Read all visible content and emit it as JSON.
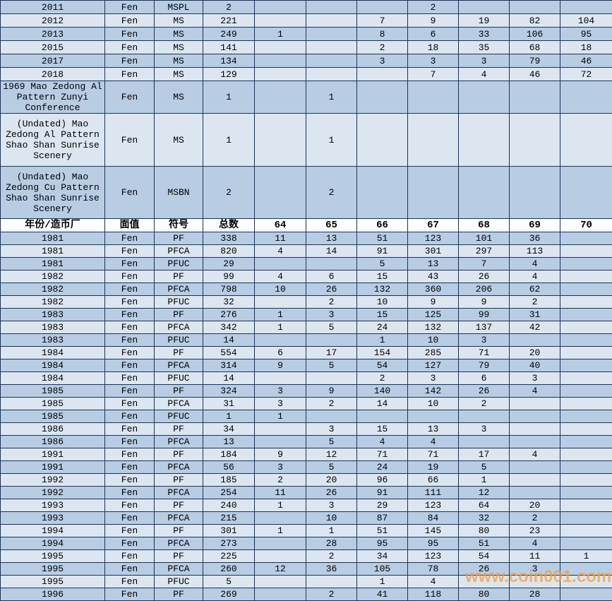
{
  "table": {
    "header": [
      "年份/造币厂",
      "面值",
      "符号",
      "总数",
      "64",
      "65",
      "66",
      "67",
      "68",
      "69",
      "70"
    ],
    "rows_top": [
      [
        "2011",
        "Fen",
        "MSPL",
        "2",
        "",
        "",
        "",
        "2",
        "",
        "",
        ""
      ],
      [
        "2012",
        "Fen",
        "MS",
        "221",
        "",
        "",
        "7",
        "9",
        "19",
        "82",
        "104"
      ],
      [
        "2013",
        "Fen",
        "MS",
        "249",
        "1",
        "",
        "8",
        "6",
        "33",
        "106",
        "95"
      ],
      [
        "2015",
        "Fen",
        "MS",
        "141",
        "",
        "",
        "2",
        "18",
        "35",
        "68",
        "18"
      ],
      [
        "2017",
        "Fen",
        "MS",
        "134",
        "",
        "",
        "3",
        "3",
        "3",
        "79",
        "46"
      ],
      [
        "2018",
        "Fen",
        "MS",
        "129",
        "",
        "",
        "",
        "7",
        "4",
        "46",
        "72"
      ],
      [
        "1969 Mao Zedong Al Pattern Zunyi Conference",
        "Fen",
        "MS",
        "1",
        "",
        "1",
        "",
        "",
        "",
        "",
        ""
      ],
      [
        "(Undated) Mao Zedong Al Pattern Shao Shan Sunrise Scenery",
        "Fen",
        "MS",
        "1",
        "",
        "1",
        "",
        "",
        "",
        "",
        ""
      ],
      [
        "(Undated) Mao Zedong Cu Pattern Shao Shan Sunrise Scenery",
        "Fen",
        "MSBN",
        "2",
        "",
        "2",
        "",
        "",
        "",
        "",
        ""
      ]
    ],
    "rows_main": [
      [
        "1981",
        "Fen",
        "PF",
        "338",
        "11",
        "13",
        "51",
        "123",
        "101",
        "36",
        ""
      ],
      [
        "1981",
        "Fen",
        "PFCA",
        "820",
        "4",
        "14",
        "91",
        "301",
        "297",
        "113",
        ""
      ],
      [
        "1981",
        "Fen",
        "PFUC",
        "29",
        "",
        "",
        "5",
        "13",
        "7",
        "4",
        ""
      ],
      [
        "1982",
        "Fen",
        "PF",
        "99",
        "4",
        "6",
        "15",
        "43",
        "26",
        "4",
        ""
      ],
      [
        "1982",
        "Fen",
        "PFCA",
        "798",
        "10",
        "26",
        "132",
        "360",
        "206",
        "62",
        ""
      ],
      [
        "1982",
        "Fen",
        "PFUC",
        "32",
        "",
        "2",
        "10",
        "9",
        "9",
        "2",
        ""
      ],
      [
        "1983",
        "Fen",
        "PF",
        "276",
        "1",
        "3",
        "15",
        "125",
        "99",
        "31",
        ""
      ],
      [
        "1983",
        "Fen",
        "PFCA",
        "342",
        "1",
        "5",
        "24",
        "132",
        "137",
        "42",
        ""
      ],
      [
        "1983",
        "Fen",
        "PFUC",
        "14",
        "",
        "",
        "1",
        "10",
        "3",
        "",
        ""
      ],
      [
        "1984",
        "Fen",
        "PF",
        "554",
        "6",
        "17",
        "154",
        "285",
        "71",
        "20",
        ""
      ],
      [
        "1984",
        "Fen",
        "PFCA",
        "314",
        "9",
        "5",
        "54",
        "127",
        "79",
        "40",
        ""
      ],
      [
        "1984",
        "Fen",
        "PFUC",
        "14",
        "",
        "",
        "2",
        "3",
        "6",
        "3",
        ""
      ],
      [
        "1985",
        "Fen",
        "PF",
        "324",
        "3",
        "9",
        "140",
        "142",
        "26",
        "4",
        ""
      ],
      [
        "1985",
        "Fen",
        "PFCA",
        "31",
        "3",
        "2",
        "14",
        "10",
        "2",
        "",
        ""
      ],
      [
        "1985",
        "Fen",
        "PFUC",
        "1",
        "1",
        "",
        "",
        "",
        "",
        "",
        ""
      ],
      [
        "1986",
        "Fen",
        "PF",
        "34",
        "",
        "3",
        "15",
        "13",
        "3",
        "",
        ""
      ],
      [
        "1986",
        "Fen",
        "PFCA",
        "13",
        "",
        "5",
        "4",
        "4",
        "",
        "",
        ""
      ],
      [
        "1991",
        "Fen",
        "PF",
        "184",
        "9",
        "12",
        "71",
        "71",
        "17",
        "4",
        ""
      ],
      [
        "1991",
        "Fen",
        "PFCA",
        "56",
        "3",
        "5",
        "24",
        "19",
        "5",
        "",
        ""
      ],
      [
        "1992",
        "Fen",
        "PF",
        "185",
        "2",
        "20",
        "96",
        "66",
        "1",
        "",
        ""
      ],
      [
        "1992",
        "Fen",
        "PFCA",
        "254",
        "11",
        "26",
        "91",
        "111",
        "12",
        "",
        ""
      ],
      [
        "1993",
        "Fen",
        "PF",
        "240",
        "1",
        "3",
        "29",
        "123",
        "64",
        "20",
        ""
      ],
      [
        "1993",
        "Fen",
        "PFCA",
        "215",
        "",
        "10",
        "87",
        "84",
        "32",
        "2",
        ""
      ],
      [
        "1994",
        "Fen",
        "PF",
        "301",
        "1",
        "1",
        "51",
        "145",
        "80",
        "23",
        ""
      ],
      [
        "1994",
        "Fen",
        "PFCA",
        "273",
        "",
        "28",
        "95",
        "95",
        "51",
        "4",
        ""
      ],
      [
        "1995",
        "Fen",
        "PF",
        "225",
        "",
        "2",
        "34",
        "123",
        "54",
        "11",
        "1"
      ],
      [
        "1995",
        "Fen",
        "PFCA",
        "260",
        "12",
        "36",
        "105",
        "78",
        "26",
        "3",
        ""
      ],
      [
        "1995",
        "Fen",
        "PFUC",
        "5",
        "",
        "",
        "1",
        "4",
        "",
        "",
        ""
      ],
      [
        "1996",
        "Fen",
        "PF",
        "269",
        "",
        "2",
        "41",
        "118",
        "80",
        "28",
        ""
      ]
    ]
  },
  "watermark": {
    "text": "www.coin001.com"
  },
  "colors": {
    "row_dark": "#b8cce4",
    "row_light": "#dce6f1",
    "header_bg": "#fcfdfe",
    "grid_border": "#1c3458",
    "watermark_orange": "#f49d3f"
  }
}
